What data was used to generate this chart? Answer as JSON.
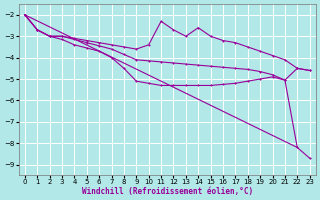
{
  "xlabel": "Windchill (Refroidissement éolien,°C)",
  "xlim": [
    -0.5,
    23.5
  ],
  "ylim": [
    -9.5,
    -1.5
  ],
  "yticks": [
    -9,
    -8,
    -7,
    -6,
    -5,
    -4,
    -3,
    -2
  ],
  "xticks": [
    0,
    1,
    2,
    3,
    4,
    5,
    6,
    7,
    8,
    9,
    10,
    11,
    12,
    13,
    14,
    15,
    16,
    17,
    18,
    19,
    20,
    21,
    22,
    23
  ],
  "bg_color": "#b2e8e8",
  "line_color": "#990099",
  "grid_color": "#ffffff",
  "curve1_x": [
    0,
    1,
    2,
    3,
    4,
    5,
    6,
    7,
    8,
    9,
    10,
    11,
    12,
    13,
    14,
    15,
    16,
    17,
    18,
    19,
    20,
    21,
    22,
    23
  ],
  "curve1_y": [
    -2.0,
    -2.7,
    -3.0,
    -3.0,
    -3.1,
    -3.2,
    -3.3,
    -3.4,
    -3.5,
    -3.6,
    -3.4,
    -2.3,
    -2.7,
    -3.0,
    -2.6,
    -3.0,
    -3.2,
    -3.3,
    -3.5,
    -3.7,
    -3.9,
    -4.1,
    -4.5,
    -4.6
  ],
  "curve2_x": [
    0,
    1,
    2,
    3,
    4,
    5,
    6,
    7,
    8,
    9,
    10,
    11,
    12,
    13,
    14,
    15,
    16,
    17,
    18,
    19,
    20,
    21,
    22,
    23
  ],
  "curve2_y": [
    -2.0,
    -2.7,
    -3.0,
    -3.0,
    -3.15,
    -3.3,
    -3.45,
    -3.6,
    -3.85,
    -4.1,
    -4.15,
    -4.2,
    -4.25,
    -4.3,
    -4.35,
    -4.4,
    -4.45,
    -4.5,
    -4.55,
    -4.65,
    -4.8,
    -5.05,
    -4.5,
    -4.6
  ],
  "curve3_x": [
    0,
    1,
    2,
    3,
    4,
    5,
    6,
    7,
    8,
    9,
    10,
    11,
    12,
    13,
    14,
    15,
    16,
    17,
    18,
    19,
    20,
    21,
    22,
    23
  ],
  "curve3_y": [
    -2.0,
    -2.7,
    -3.0,
    -3.15,
    -3.4,
    -3.55,
    -3.7,
    -4.0,
    -4.5,
    -5.1,
    -5.2,
    -5.3,
    -5.3,
    -5.3,
    -5.3,
    -5.3,
    -5.25,
    -5.2,
    -5.1,
    -5.0,
    -4.9,
    -5.05,
    -8.2,
    -8.7
  ]
}
